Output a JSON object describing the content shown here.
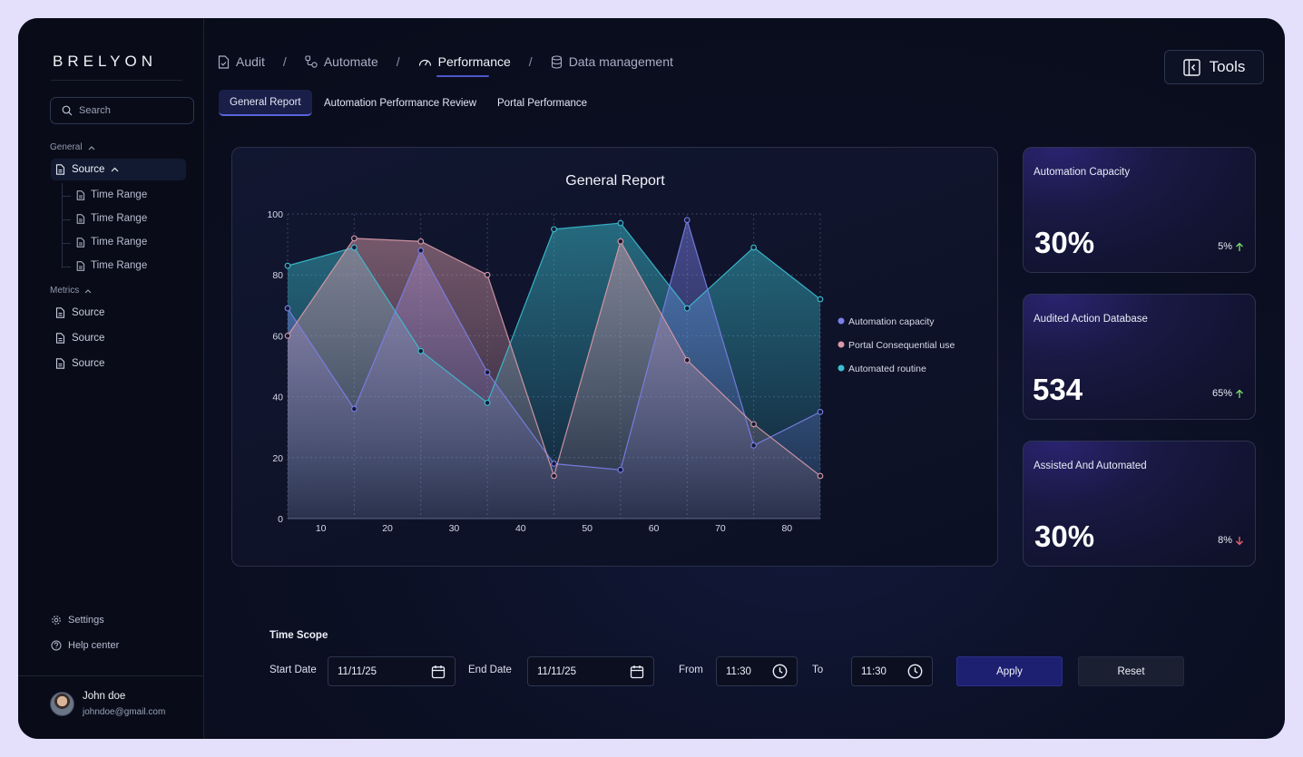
{
  "app": {
    "brand": "BRELYON"
  },
  "sidebar": {
    "search_placeholder": "Search",
    "general_label": "General",
    "source_active": "Source",
    "sub_items": [
      "Time Range",
      "Time Range",
      "Time Range",
      "Time Range"
    ],
    "metrics_label": "Metrics",
    "metrics_items": [
      "Source",
      "Source",
      "Source"
    ],
    "settings": "Settings",
    "help": "Help center",
    "user": {
      "name": "John doe",
      "email": "johndoe@gmail.com"
    }
  },
  "breadcrumbs": [
    {
      "label": "Audit",
      "icon": "file-check-icon"
    },
    {
      "label": "Automate",
      "icon": "workflow-icon"
    },
    {
      "label": "Performance",
      "icon": "gauge-icon",
      "active": true
    },
    {
      "label": "Data management",
      "icon": "database-icon"
    }
  ],
  "breadcrumb_separator": "/",
  "tools_label": "Tools",
  "tabs": [
    "General Report",
    "Automation Performance Review",
    "Portal Performance"
  ],
  "chart_data": {
    "type": "area",
    "title": "General Report",
    "x": [
      5,
      15,
      25,
      35,
      45,
      55,
      65,
      75,
      85
    ],
    "x_ticks": [
      10,
      20,
      30,
      40,
      50,
      60,
      70,
      80
    ],
    "xlim": [
      5,
      85
    ],
    "ylim": [
      0,
      100
    ],
    "y_ticks": [
      0,
      20,
      40,
      60,
      80,
      100
    ],
    "grid": true,
    "legend_position": "right",
    "series": [
      {
        "name": "Automation capacity",
        "color": "#7b7fe8",
        "values": [
          69,
          36,
          88,
          48,
          18,
          16,
          98,
          24,
          35
        ]
      },
      {
        "name": "Portal Consequential use",
        "color": "#d99aa8",
        "values": [
          60,
          92,
          91,
          80,
          14,
          91,
          52,
          31,
          14
        ]
      },
      {
        "name": "Automated routine",
        "color": "#3bbfd0",
        "values": [
          83,
          89,
          55,
          38,
          95,
          97,
          69,
          89,
          72
        ]
      }
    ]
  },
  "stats": [
    {
      "title": "Automation Capacity",
      "value": "30%",
      "delta": "5%",
      "direction": "up"
    },
    {
      "title": "Audited Action Database",
      "value": "534",
      "delta": "65%",
      "direction": "up"
    },
    {
      "title": "Assisted And Automated",
      "value": "30%",
      "delta": "8%",
      "direction": "down"
    }
  ],
  "time_scope": {
    "title": "Time Scope",
    "start_label": "Start Date",
    "start_value": "11/11/25",
    "end_label": "End Date",
    "end_value": "11/11/25",
    "from_label": "From",
    "from_value": "11:30",
    "to_label": "To",
    "to_value": "11:30",
    "apply": "Apply",
    "reset": "Reset"
  },
  "colors": {
    "up": "#7ee06b",
    "down": "#f0656b",
    "accent": "#4d56c9"
  }
}
